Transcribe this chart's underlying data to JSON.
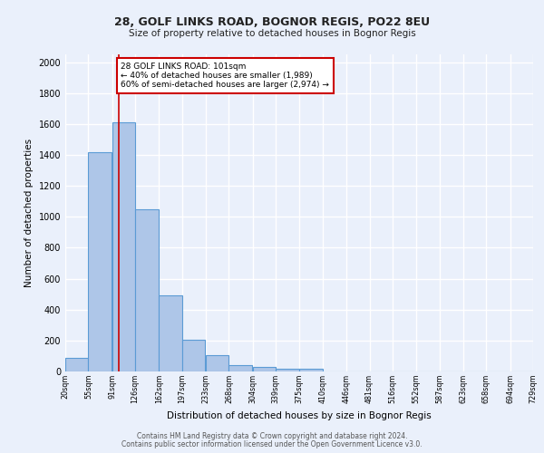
{
  "title1": "28, GOLF LINKS ROAD, BOGNOR REGIS, PO22 8EU",
  "title2": "Size of property relative to detached houses in Bognor Regis",
  "xlabel": "Distribution of detached houses by size in Bognor Regis",
  "ylabel": "Number of detached properties",
  "bin_labels": [
    "20sqm",
    "55sqm",
    "91sqm",
    "126sqm",
    "162sqm",
    "197sqm",
    "233sqm",
    "268sqm",
    "304sqm",
    "339sqm",
    "375sqm",
    "410sqm",
    "446sqm",
    "481sqm",
    "516sqm",
    "552sqm",
    "587sqm",
    "623sqm",
    "658sqm",
    "694sqm",
    "729sqm"
  ],
  "bar_values": [
    85,
    1420,
    1610,
    1050,
    490,
    205,
    105,
    40,
    28,
    20,
    15,
    0,
    0,
    0,
    0,
    0,
    0,
    0,
    0,
    0
  ],
  "bar_color": "#aec6e8",
  "bar_edge_color": "#5b9bd5",
  "background_color": "#eaf0fb",
  "grid_color": "#ffffff",
  "property_line_color": "#cc0000",
  "annotation_text": "28 GOLF LINKS ROAD: 101sqm\n← 40% of detached houses are smaller (1,989)\n60% of semi-detached houses are larger (2,974) →",
  "annotation_box_color": "#ffffff",
  "annotation_box_edge_color": "#cc0000",
  "ylim": [
    0,
    2050
  ],
  "yticks": [
    0,
    200,
    400,
    600,
    800,
    1000,
    1200,
    1400,
    1600,
    1800,
    2000
  ],
  "bin_starts": [
    20,
    55,
    91,
    126,
    162,
    197,
    233,
    268,
    304,
    339,
    375,
    410,
    446,
    481,
    516,
    552,
    587,
    623,
    658,
    694
  ],
  "bin_width": 35,
  "property_sqm": 101,
  "footer1": "Contains HM Land Registry data © Crown copyright and database right 2024.",
  "footer2": "Contains public sector information licensed under the Open Government Licence v3.0."
}
